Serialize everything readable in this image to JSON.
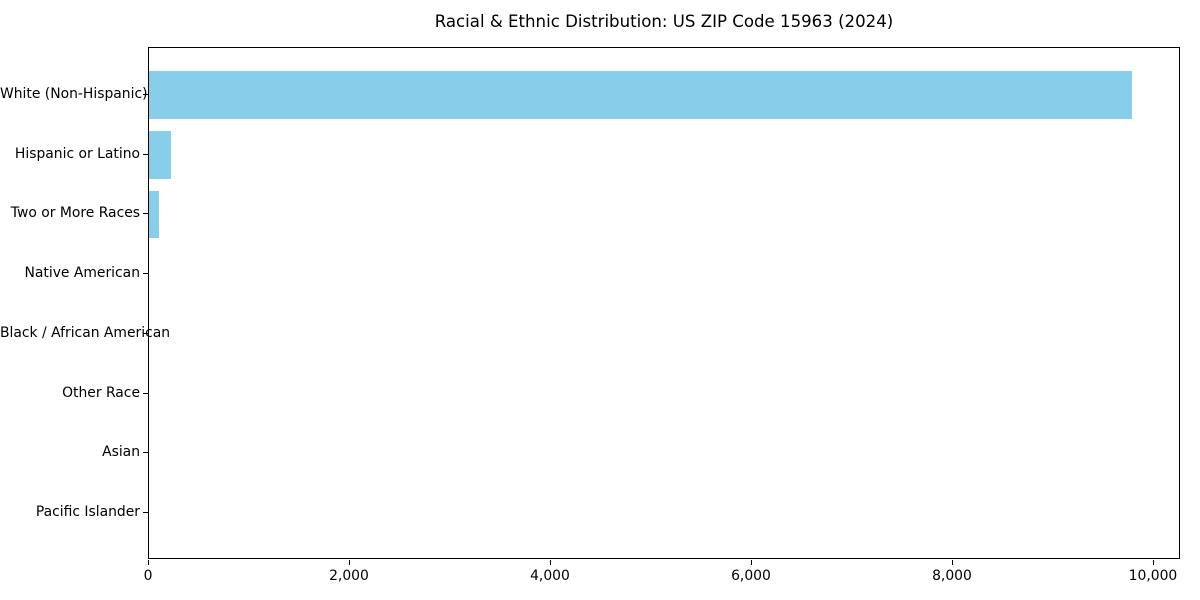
{
  "chart_data": {
    "type": "bar",
    "orientation": "horizontal",
    "title": "Racial & Ethnic Distribution: US ZIP Code 15963 (2024)",
    "categories": [
      "White (Non-Hispanic)",
      "Hispanic or Latino",
      "Two or More Races",
      "Native American",
      "Black / African American",
      "Other Race",
      "Asian",
      "Pacific Islander"
    ],
    "values": [
      9780,
      220,
      100,
      0,
      0,
      0,
      0,
      0
    ],
    "title_text_color": "#000000",
    "bar_color": "#87CEEB",
    "axis_color": "#000000",
    "background_color": "#ffffff",
    "xlabel": "",
    "ylabel": "",
    "xlim": [
      0,
      10269
    ],
    "x_ticks": [
      0,
      2000,
      4000,
      6000,
      8000,
      10000
    ],
    "x_tick_labels": [
      "0",
      "2,000",
      "4,000",
      "6,000",
      "8,000",
      "10,000"
    ],
    "grid": false,
    "legend_position": "none",
    "bar_relative_height": 0.8
  }
}
